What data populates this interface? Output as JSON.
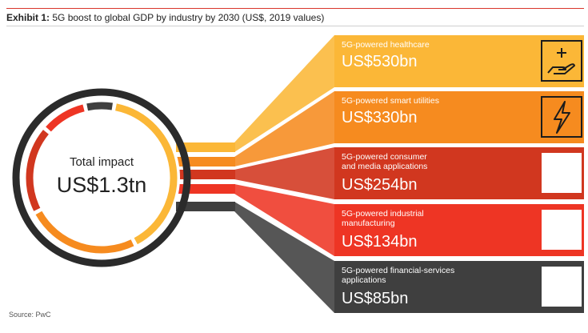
{
  "header": {
    "label": "Exhibit 1:",
    "title": "5G boost to global GDP by industry by 2030 (US$, 2019 values)"
  },
  "center": {
    "title": "Total impact",
    "value": "US$1.3tn"
  },
  "source": "Source: PwC",
  "chart_data": {
    "type": "bar",
    "title": "5G boost to global GDP by industry by 2030 (US$, 2019 values)",
    "unit": "US$bn",
    "total_label": "US$1.3tn",
    "categories": [
      "5G-powered healthcare",
      "5G-powered smart utilities",
      "5G-powered consumer and media applications",
      "5G-powered industrial manufacturing",
      "5G-powered financial-services applications"
    ],
    "values": [
      530,
      330,
      254,
      134,
      85
    ],
    "value_labels": [
      "US$530bn",
      "US$330bn",
      "US$254bn",
      "US$134bn",
      "US$85bn"
    ],
    "label_lines": [
      [
        "5G-powered healthcare"
      ],
      [
        "5G-powered smart utilities"
      ],
      [
        "5G-powered consumer",
        "and media applications"
      ],
      [
        "5G-powered industrial",
        "manufacturing"
      ],
      [
        "5G-powered financial-services",
        "applications"
      ]
    ],
    "colors": [
      "#fbb737",
      "#f68b1f",
      "#d1371f",
      "#ee3524",
      "#3f3f3f"
    ],
    "icons": [
      "healthcare-hand-plus-icon",
      "lightning-bolt-icon",
      "",
      "",
      ""
    ]
  }
}
